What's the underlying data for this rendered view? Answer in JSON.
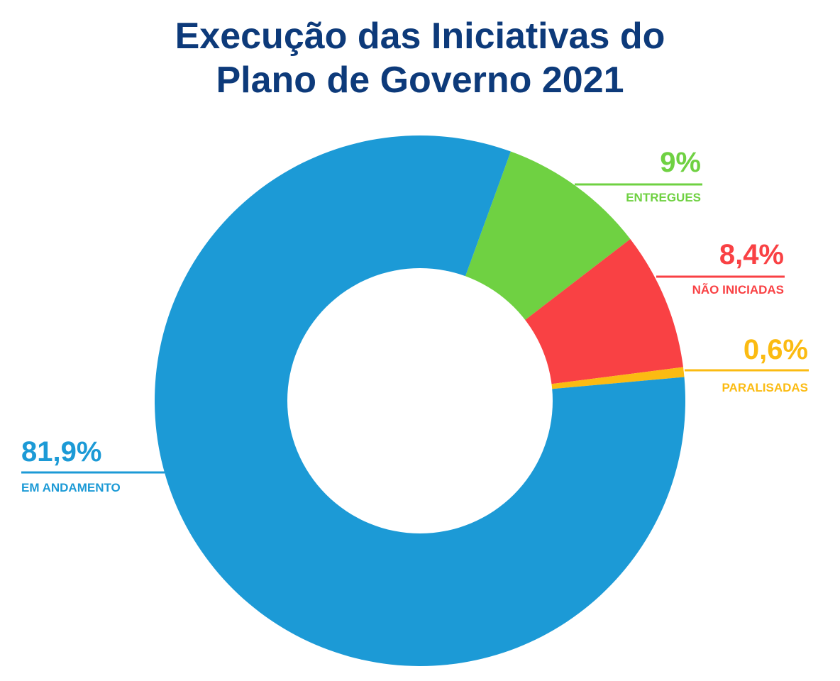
{
  "title": {
    "line1": "Execução das Iniciativas do",
    "line2": "Plano de Governo 2021"
  },
  "chart_data": {
    "type": "pie",
    "subtype": "donut",
    "title": "Execução das Iniciativas do Plano de Governo 2021",
    "slices": [
      {
        "key": "entregues",
        "label": "ENTREGUES",
        "value": 9.0,
        "value_label": "9%",
        "color": "#6fd142"
      },
      {
        "key": "nao_iniciadas",
        "label": "NÃO INICIADAS",
        "value": 8.4,
        "value_label": "8,4%",
        "color": "#f94144"
      },
      {
        "key": "paralisadas",
        "label": "PARALISADAS",
        "value": 0.6,
        "value_label": "0,6%",
        "color": "#fbbb12"
      },
      {
        "key": "em_andamento",
        "label": "EM ANDAMENTO",
        "value": 81.9,
        "value_label": "81,9%",
        "color": "#1c9ad6"
      }
    ],
    "start_angle_deg": 20,
    "legend": "callout labels beside slices"
  },
  "colors": {
    "title": "#0d3a7a",
    "background": "#ffffff"
  }
}
